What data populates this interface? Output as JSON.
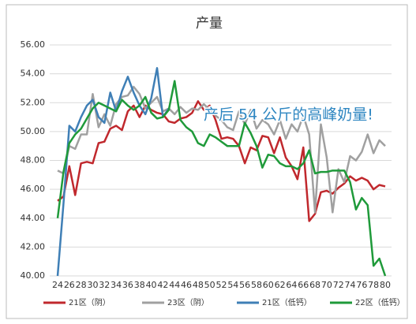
{
  "chart_data": {
    "type": "line",
    "title": "产量",
    "annotation": "产后 54 公斤的高峰奶量!",
    "x": [
      24,
      25,
      26,
      27,
      28,
      29,
      30,
      31,
      32,
      33,
      34,
      35,
      36,
      37,
      38,
      39,
      40,
      41,
      42,
      43,
      44,
      45,
      46,
      47,
      48,
      49,
      50,
      51,
      52,
      53,
      54,
      55,
      56,
      57,
      58,
      59,
      60,
      61,
      62,
      63,
      64,
      65,
      66,
      67,
      68,
      69,
      70,
      71,
      72,
      73,
      74,
      75,
      76,
      77,
      78,
      79,
      80
    ],
    "xlim": [
      24,
      80
    ],
    "xticks": [
      24,
      26,
      28,
      30,
      32,
      34,
      36,
      38,
      40,
      42,
      44,
      46,
      48,
      50,
      52,
      54,
      56,
      58,
      60,
      62,
      64,
      66,
      68,
      70,
      72,
      74,
      76,
      78,
      80
    ],
    "ylim": [
      40,
      56
    ],
    "yticks": [
      {
        "value": 40,
        "label": "40.00"
      },
      {
        "value": 42,
        "label": "42.00"
      },
      {
        "value": 44,
        "label": "44.00"
      },
      {
        "value": 46,
        "label": "46.00"
      },
      {
        "value": 48,
        "label": "48.00"
      },
      {
        "value": 50,
        "label": "50.00"
      },
      {
        "value": 52,
        "label": "52.00"
      },
      {
        "value": 54,
        "label": "54.00"
      },
      {
        "value": 56,
        "label": "56.00"
      }
    ],
    "grid": true,
    "legend": "bottom",
    "series": [
      {
        "name": "21区（阴）",
        "color": "#c0282d",
        "values": [
          45.2,
          45.5,
          47.6,
          45.6,
          47.8,
          47.9,
          47.8,
          49.2,
          49.3,
          50.2,
          50.4,
          50.1,
          51.4,
          51.8,
          51.0,
          51.8,
          51.5,
          51.3,
          51.2,
          50.7,
          50.6,
          50.9,
          51.0,
          51.3,
          52.1,
          51.5,
          51.8,
          50.8,
          49.5,
          49.6,
          49.5,
          49.0,
          47.8,
          48.9,
          48.7,
          49.7,
          49.6,
          48.5,
          49.6,
          48.2,
          47.6,
          46.7,
          48.9,
          43.8,
          44.3,
          45.8,
          45.9,
          45.7,
          46.1,
          46.4,
          46.9,
          46.6,
          46.8,
          46.6,
          46.0,
          46.3,
          46.2
        ]
      },
      {
        "name": "23区（阴）",
        "color": "#a0a0a0",
        "values": [
          47.3,
          47.1,
          49.0,
          48.8,
          49.8,
          49.8,
          52.6,
          50.3,
          51.2,
          50.4,
          51.9,
          52.4,
          52.5,
          53.1,
          52.6,
          51.6,
          52.0,
          52.4,
          51.4,
          51.6,
          51.2,
          51.7,
          51.3,
          51.6,
          51.5,
          51.9,
          51.5,
          51.1,
          50.8,
          50.3,
          50.1,
          51.4,
          50.5,
          51.5,
          50.2,
          50.8,
          50.5,
          49.8,
          50.8,
          49.5,
          50.5,
          50.0,
          51.1,
          49.8,
          44.4,
          50.5,
          48.2,
          44.4,
          47.4,
          46.5,
          48.3,
          48.0,
          48.6,
          49.8,
          48.5,
          49.4,
          49.0
        ]
      },
      {
        "name": "21区（低钙）",
        "color": "#3f7fb6",
        "values": [
          40.0,
          45.0,
          50.4,
          50.0,
          51.0,
          51.8,
          52.2,
          51.0,
          50.6,
          52.7,
          51.4,
          52.8,
          53.8,
          52.7,
          51.8,
          51.2,
          52.3,
          54.4,
          51.0,
          51.6,
          null,
          null,
          null,
          null,
          null,
          null,
          null,
          null,
          null,
          null,
          null,
          null,
          null,
          null,
          null,
          null,
          null,
          null,
          null,
          null,
          null,
          null,
          null,
          null,
          null,
          null,
          null,
          null,
          null,
          null,
          null,
          null,
          null,
          null,
          null,
          null,
          null
        ]
      },
      {
        "name": "22区（低钙）",
        "color": "#1f9a3a",
        "values": [
          44.0,
          47.2,
          49.2,
          49.8,
          50.2,
          50.9,
          51.6,
          52.0,
          51.8,
          51.6,
          51.4,
          52.2,
          51.8,
          51.5,
          51.8,
          52.4,
          51.3,
          50.9,
          51.0,
          51.5,
          53.5,
          50.8,
          50.3,
          50.0,
          49.2,
          49.0,
          49.8,
          49.6,
          49.3,
          49.0,
          49.0,
          49.0,
          50.6,
          49.9,
          49.0,
          47.5,
          48.4,
          48.3,
          47.8,
          47.6,
          47.6,
          47.4,
          47.8,
          48.7,
          47.1,
          47.2,
          47.2,
          47.3,
          47.3,
          47.3,
          46.5,
          44.6,
          45.4,
          44.9,
          40.7,
          41.2,
          40.0
        ]
      }
    ]
  }
}
